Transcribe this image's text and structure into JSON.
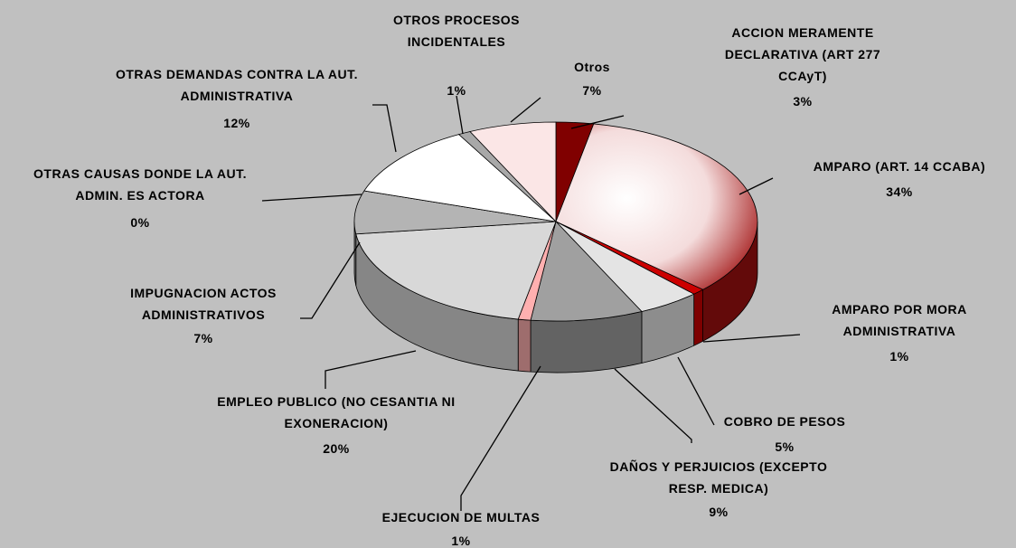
{
  "chart_data": {
    "type": "pie",
    "categories": [
      "ACCION MERAMENTE DECLARATIVA (ART 277 CCAyT)",
      "AMPARO (ART. 14 CCABA)",
      "AMPARO POR MORA ADMINISTRATIVA",
      "COBRO DE PESOS",
      "DAÑOS Y PERJUICIOS (EXCEPTO RESP. MEDICA)",
      "EJECUCION DE MULTAS",
      "EMPLEO PUBLICO (NO CESANTIA NI EXONERACION)",
      "IMPUGNACION ACTOS ADMINISTRATIVOS",
      "OTRAS CAUSAS DONDE LA AUT. ADMIN. ES ACTORA",
      "OTRAS DEMANDAS CONTRA LA AUT. ADMINISTRATIVA",
      "OTROS PROCESOS INCIDENTALES",
      "Otros"
    ],
    "values": [
      3,
      34,
      1,
      5,
      9,
      1,
      20,
      7,
      0,
      12,
      1,
      7
    ],
    "value_labels": [
      "3%",
      "34%",
      "1%",
      "5%",
      "9%",
      "1%",
      "20%",
      "7%",
      "0%",
      "12%",
      "1%",
      "7%"
    ],
    "colors": [
      "#800000",
      "#a01010",
      "#cc0000",
      "#e4e4e4",
      "#a0a0a0",
      "#ffb0b0",
      "#d8d8d8",
      "#b4b4b4",
      "#008000",
      "#ffffff",
      "#a8a8a8",
      "#fbe6e6"
    ]
  }
}
